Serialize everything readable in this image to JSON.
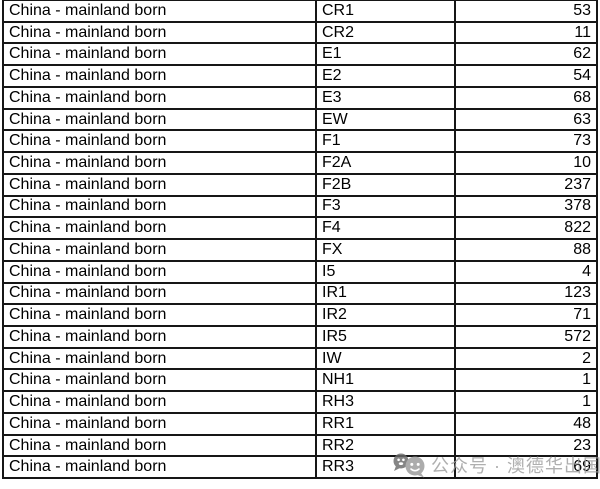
{
  "table": {
    "rows": [
      [
        "China - mainland born",
        "CR1",
        "53"
      ],
      [
        "China - mainland born",
        "CR2",
        "11"
      ],
      [
        "China - mainland born",
        "E1",
        "62"
      ],
      [
        "China - mainland born",
        "E2",
        "54"
      ],
      [
        "China - mainland born",
        "E3",
        "68"
      ],
      [
        "China - mainland born",
        "EW",
        "63"
      ],
      [
        "China - mainland born",
        "F1",
        "73"
      ],
      [
        "China - mainland born",
        "F2A",
        "10"
      ],
      [
        "China - mainland born",
        "F2B",
        "237"
      ],
      [
        "China - mainland born",
        "F3",
        "378"
      ],
      [
        "China - mainland born",
        "F4",
        "822"
      ],
      [
        "China - mainland born",
        "FX",
        "88"
      ],
      [
        "China - mainland born",
        "I5",
        "4"
      ],
      [
        "China - mainland born",
        "IR1",
        "123"
      ],
      [
        "China - mainland born",
        "IR2",
        "71"
      ],
      [
        "China - mainland born",
        "IR5",
        "572"
      ],
      [
        "China - mainland born",
        "IW",
        "2"
      ],
      [
        "China - mainland born",
        "NH1",
        "1"
      ],
      [
        "China - mainland born",
        "RH3",
        "1"
      ],
      [
        "China - mainland born",
        "RR1",
        "48"
      ],
      [
        "China - mainland born",
        "RR2",
        "23"
      ],
      [
        "China - mainland born",
        "RR3",
        "69"
      ]
    ]
  },
  "watermark": {
    "icon": "wechat-official-account-icon",
    "text": "公众号 · 澳德华出国"
  },
  "colors": {
    "background": "#ffffff",
    "text": "#000000",
    "border": "#161616",
    "watermark_text": "#9e9e9e",
    "watermark_icon_dark": "#6b6b6b",
    "watermark_icon_light": "#9b9b9b"
  }
}
